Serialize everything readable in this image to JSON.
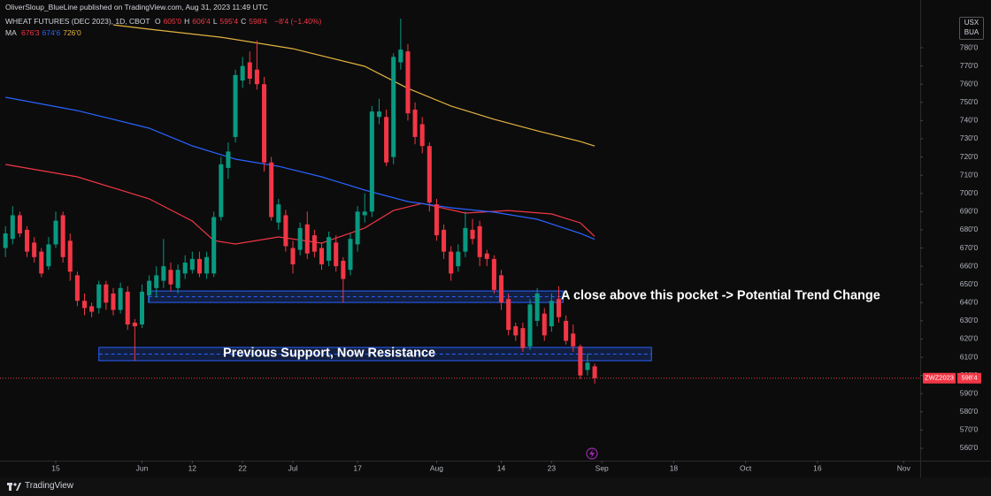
{
  "chart_data": {
    "type": "candlestick",
    "published": "OliverSloup_BlueLine published on TradingView.com, Aug 31, 2023 11:49 UTC",
    "symbol": "WHEAT FUTURES (DEC 2023), 1D, CBOT",
    "ohlc_legend": [
      {
        "key": "O",
        "value": "605'0"
      },
      {
        "key": "H",
        "value": "606'4"
      },
      {
        "key": "L",
        "value": "595'4"
      },
      {
        "key": "C",
        "value": "598'4"
      }
    ],
    "change": "−8'4 (−1.40%)",
    "currency": [
      "USX",
      "BUA"
    ],
    "up_color": "#089981",
    "down_color": "#f23645",
    "open": [
      670,
      675,
      688,
      680,
      673,
      668,
      660,
      672,
      688,
      674,
      655,
      641,
      638,
      637,
      650,
      645,
      636,
      646,
      629,
      628,
      644,
      648,
      652,
      658,
      648,
      656,
      658,
      664,
      656,
      656,
      687,
      714,
      731,
      762,
      772,
      768,
      760,
      717,
      684,
      688,
      670,
      669,
      683,
      677,
      670,
      663,
      673,
      663,
      658,
      672,
      688,
      690,
      742,
      742,
      720,
      772,
      778,
      746,
      738,
      726,
      694,
      680,
      668,
      660,
      668,
      680,
      682,
      667,
      664,
      655,
      642,
      627,
      626,
      616,
      630,
      634,
      627,
      642,
      630,
      623,
      616,
      603,
      605
    ],
    "high": [
      682,
      693,
      690,
      682,
      676,
      670,
      676,
      690,
      690,
      678,
      657,
      645,
      640,
      652,
      652,
      648,
      651,
      649,
      631,
      650,
      655,
      660,
      675,
      662,
      661,
      666,
      668,
      668,
      668,
      690,
      720,
      728,
      768,
      775,
      778,
      784,
      764,
      720,
      697,
      691,
      674,
      684,
      690,
      680,
      673,
      679,
      677,
      665,
      678,
      693,
      700,
      748,
      752,
      746,
      777,
      796,
      782,
      750,
      742,
      728,
      697,
      683,
      671,
      672,
      690,
      686,
      685,
      669,
      666,
      658,
      645,
      629,
      629,
      642,
      648,
      637,
      645,
      649,
      633,
      628,
      617,
      612,
      606.5
    ],
    "low": [
      665,
      672,
      676,
      665,
      662,
      654,
      658,
      670,
      662,
      652,
      638,
      633,
      632,
      634,
      636,
      633,
      634,
      625,
      608,
      626,
      640,
      643,
      648,
      646,
      645,
      653,
      656,
      654,
      653,
      654,
      685,
      708,
      728,
      758,
      760,
      757,
      712,
      685,
      680,
      668,
      656,
      666,
      664,
      665,
      658,
      660,
      657,
      640,
      655,
      668,
      684,
      687,
      738,
      715,
      716,
      768,
      740,
      727,
      722,
      690,
      674,
      664,
      652,
      657,
      665,
      672,
      660,
      660,
      645,
      636,
      622,
      619,
      613,
      614,
      627,
      619,
      624,
      629,
      617,
      613,
      598,
      600,
      595.5
    ],
    "close": [
      678,
      688,
      678,
      668,
      665,
      656,
      672,
      685,
      665,
      657,
      641,
      637,
      635,
      650,
      640,
      636,
      648,
      628,
      627,
      646,
      652,
      655,
      660,
      650,
      658,
      662,
      664,
      656,
      665,
      687,
      716,
      723,
      765,
      770,
      763,
      760,
      717,
      687,
      694,
      671,
      661,
      681,
      667,
      668,
      661,
      676,
      660,
      653,
      675,
      690,
      690,
      745,
      745,
      717,
      775,
      779,
      744,
      731,
      726,
      695,
      677,
      668,
      656,
      668,
      681,
      675,
      665,
      664,
      647,
      640,
      625,
      622,
      615,
      639,
      645,
      622,
      641,
      632,
      619,
      616,
      600,
      607,
      598.5
    ],
    "ma_label": "MA",
    "moving_averages": [
      {
        "color": "#f23645",
        "last_label": "676'3",
        "x": [
          0,
          10,
          20,
          26,
          29,
          32,
          38,
          44,
          50,
          54,
          58,
          64,
          70,
          76,
          80,
          82
        ],
        "values": [
          715.9,
          709.1,
          697,
          684.8,
          674.1,
          672.2,
          676.1,
          672.7,
          681,
          690.6,
          694.5,
          689.2,
          690.6,
          688.7,
          683.8,
          676.375
        ]
      },
      {
        "color": "#2962ff",
        "last_label": "674'6",
        "x": [
          0,
          10,
          20,
          26,
          32,
          38,
          44,
          50,
          56,
          62,
          68,
          74,
          80,
          82
        ],
        "values": [
          752.8,
          745.5,
          735.8,
          726.1,
          718.8,
          714.9,
          709.1,
          701.8,
          695.5,
          692.1,
          689.7,
          685.8,
          678,
          674.75
        ]
      },
      {
        "color": "#e3b341",
        "last_label": "726'0",
        "x": [
          15,
          20,
          30,
          40,
          50,
          56,
          62,
          68,
          74,
          80,
          82
        ],
        "values": [
          792.6,
          790.2,
          785.8,
          779.5,
          769.8,
          757.7,
          748,
          740.7,
          734.4,
          728.5,
          726
        ]
      }
    ],
    "zones": [
      {
        "top": 646.4,
        "bottom": 640.1,
        "start": 19.9,
        "end": 77.6,
        "label": "A close above this pocket -> Potential Trend Change"
      },
      {
        "top": 615.4,
        "bottom": 608.1,
        "start": 13,
        "end": 89.9,
        "label": "Previous Support, Now Resistance"
      }
    ],
    "last_price": 598.5,
    "symbol_tag": "ZWZ2023",
    "price_tag": "598'4",
    "xlim": [
      -0.76,
      127.3
    ],
    "xticks": [
      {
        "value": 7,
        "label": "15"
      },
      {
        "value": 19,
        "label": "Jun"
      },
      {
        "value": 26,
        "label": "12"
      },
      {
        "value": 33,
        "label": "22"
      },
      {
        "value": 40,
        "label": "Jul"
      },
      {
        "value": 49,
        "label": "17"
      },
      {
        "value": 60,
        "label": "Aug"
      },
      {
        "value": 69,
        "label": "14"
      },
      {
        "value": 76,
        "label": "23"
      },
      {
        "value": 83,
        "label": "Sep"
      },
      {
        "value": 93,
        "label": "18"
      },
      {
        "value": 103,
        "label": "Oct"
      },
      {
        "value": 113,
        "label": "16"
      },
      {
        "value": 125,
        "label": "Nov"
      }
    ],
    "ylim": [
      553.2,
      797.5
    ],
    "yticks": [
      {
        "value": 560,
        "label": "560'0"
      },
      {
        "value": 570,
        "label": "570'0"
      },
      {
        "value": 580,
        "label": "580'0"
      },
      {
        "value": 590,
        "label": "590'0"
      },
      {
        "value": 600,
        "label": "600'0"
      },
      {
        "value": 610,
        "label": "610'0"
      },
      {
        "value": 620,
        "label": "620'0"
      },
      {
        "value": 630,
        "label": "630'0"
      },
      {
        "value": 640,
        "label": "640'0"
      },
      {
        "value": 650,
        "label": "650'0"
      },
      {
        "value": 660,
        "label": "660'0"
      },
      {
        "value": 670,
        "label": "670'0"
      },
      {
        "value": 680,
        "label": "680'0"
      },
      {
        "value": 690,
        "label": "690'0"
      },
      {
        "value": 700,
        "label": "700'0"
      },
      {
        "value": 710,
        "label": "710'0"
      },
      {
        "value": 720,
        "label": "720'0"
      },
      {
        "value": 730,
        "label": "730'0"
      },
      {
        "value": 740,
        "label": "740'0"
      },
      {
        "value": 750,
        "label": "750'0"
      },
      {
        "value": 760,
        "label": "760'0"
      },
      {
        "value": 770,
        "label": "770'0"
      },
      {
        "value": 780,
        "label": "780'0"
      }
    ],
    "footer": "TradingView"
  }
}
